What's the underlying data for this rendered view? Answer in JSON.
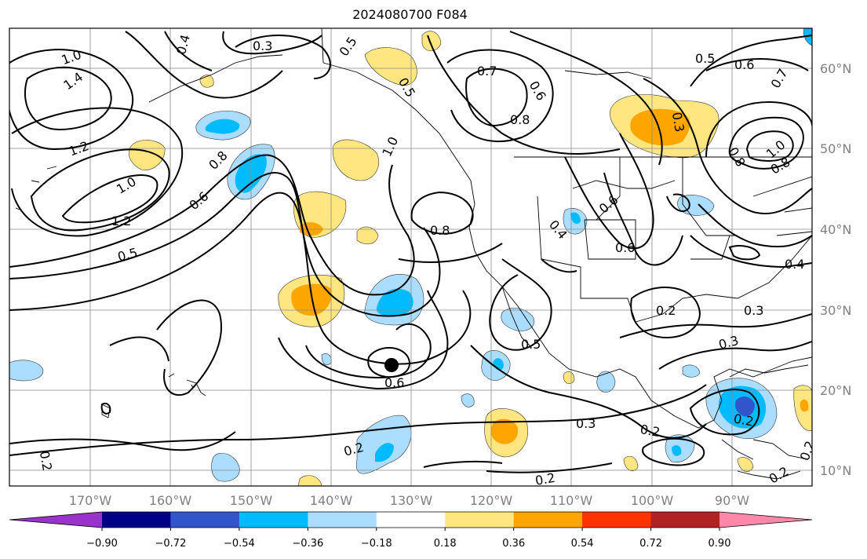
{
  "title": "2024080700 F084",
  "longitude_labels": [
    "170°W",
    "160°W",
    "150°W",
    "140°W",
    "130°W",
    "120°W",
    "110°W",
    "100°W",
    "90°W"
  ],
  "latitude_labels": [
    "60°N",
    "50°N",
    "40°N",
    "30°N",
    "20°N",
    "10°N"
  ],
  "contour_labels": [
    "1.0",
    "1.4",
    "1.2",
    "1.0",
    "1.2",
    "0.5",
    "0.4",
    "0.3",
    "0.5",
    "0.8",
    "0.6",
    "1.0",
    "0.8",
    "0.5",
    "0.7",
    "0.6",
    "0.8",
    "0.5",
    "0.6",
    "0.7",
    "0.3",
    "1.0",
    "0.8",
    "0.6",
    "0.4",
    "0.6",
    "0.8",
    "0.4",
    "0.2",
    "0.3",
    "0.3",
    "0.5",
    "0.6",
    "0.2",
    "0.3",
    "0.2",
    "0.2",
    "0.2",
    "0.2",
    "0.2",
    "0.2"
  ],
  "colorbar": {
    "colors": [
      "#9933cc",
      "#000088",
      "#3355cc",
      "#00bbff",
      "#aaddff",
      "#ffffff",
      "#ffe680",
      "#ffa500",
      "#ff3300",
      "#b22222",
      "#ff88aa"
    ],
    "tick_labels": [
      "−0.90",
      "−0.72",
      "−0.54",
      "−0.36",
      "−0.18",
      "0.18",
      "0.36",
      "0.54",
      "0.72",
      "0.90"
    ]
  },
  "icons": {
    "marker": "black-dot-marker"
  }
}
